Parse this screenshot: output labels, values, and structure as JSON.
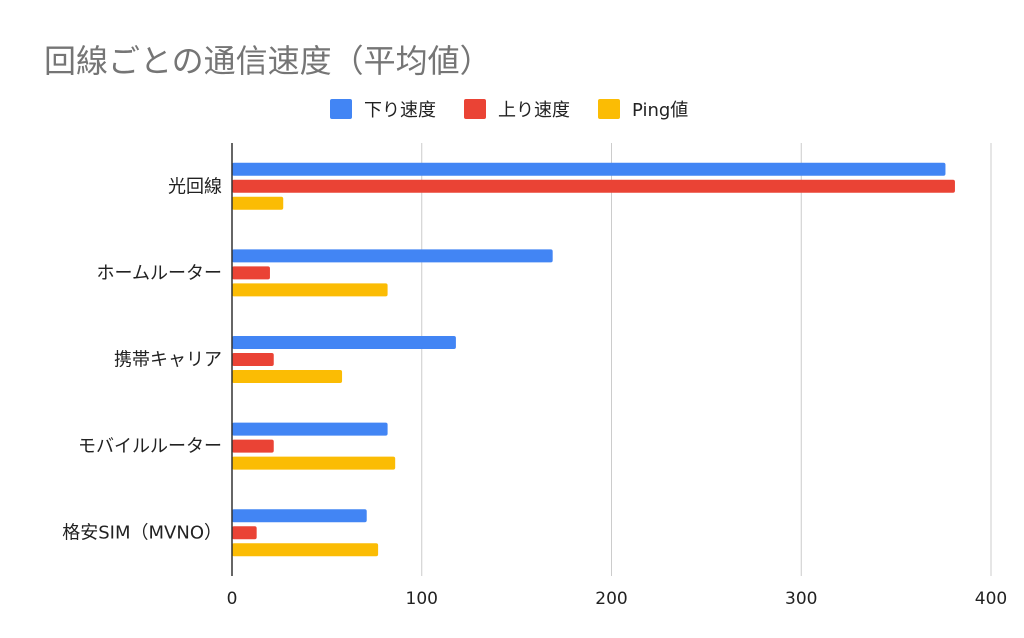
{
  "chart_data": {
    "type": "bar",
    "orientation": "horizontal",
    "title": "回線ごとの通信速度（平均値）",
    "categories": [
      "光回線",
      "ホームルーター",
      "携帯キャリア",
      "モバイルルーター",
      "格安SIM（MVNO）"
    ],
    "series": [
      {
        "name": "下り速度",
        "color": "#4285f4",
        "values": [
          376,
          169,
          118,
          82,
          71
        ]
      },
      {
        "name": "上り速度",
        "color": "#ea4335",
        "values": [
          381,
          20,
          22,
          22,
          13
        ]
      },
      {
        "name": "Ping値",
        "color": "#fbbc04",
        "values": [
          27,
          82,
          58,
          86,
          77
        ]
      }
    ],
    "xlim": [
      0,
      400
    ],
    "xticks": [
      "0",
      "100",
      "200",
      "300",
      "400"
    ],
    "grid": true,
    "legend_position": "top"
  }
}
